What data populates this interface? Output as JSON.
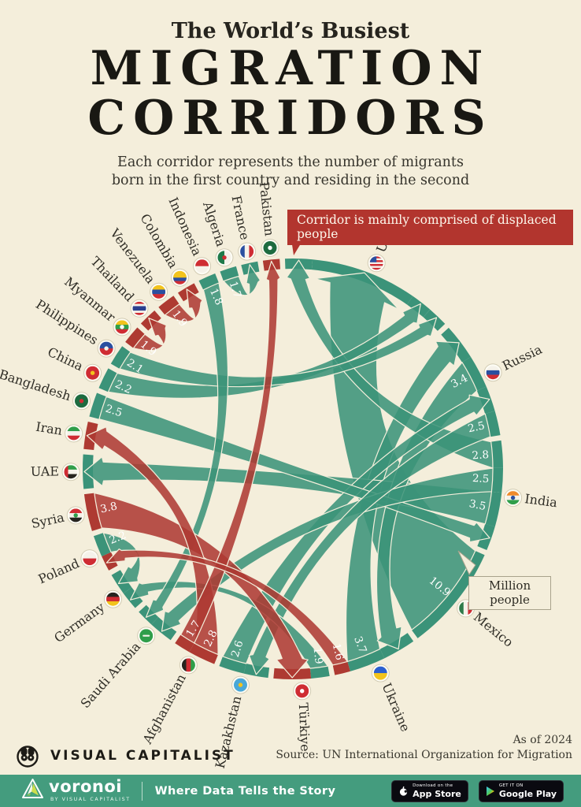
{
  "header": {
    "kicker": "The World’s Busiest",
    "title_line1": "MIGRATION",
    "title_line2": "CORRIDORS",
    "subtitle_line1": "Each corridor represents the number of migrants",
    "subtitle_line2": "born in the first country and residing in the second"
  },
  "annotations": {
    "displaced_note": "Corridor is mainly comprised of displaced people",
    "units_note": "Million people"
  },
  "chart_data": {
    "type": "chord",
    "title": "The World’s Busiest Migration Corridors",
    "unit": "million people",
    "legend": "Red corridor = mainly displaced people; teal corridor = other migration",
    "colors": {
      "corridor": "#3b9379",
      "displaced": "#ae3a32",
      "background": "#f4eedb",
      "value_label": "#ffffff"
    },
    "countries_clockwise_from_top": [
      "Pakistan",
      "U.S.",
      "Russia",
      "India",
      "Mexico",
      "Ukraine",
      "Türkiye",
      "Kazakhstan",
      "Afghanistan",
      "Saudi Arabia",
      "Germany",
      "Poland",
      "Syria",
      "UAE",
      "Iran",
      "Bangladesh",
      "China",
      "Philippines",
      "Myanmar",
      "Thailand",
      "Venezuela",
      "Colombia",
      "Indonesia",
      "Algeria",
      "France"
    ],
    "corridors": [
      {
        "from": "Mexico",
        "to": "U.S.",
        "value": 10.9,
        "displaced": false
      },
      {
        "from": "Syria",
        "to": "Türkiye",
        "value": 3.8,
        "displaced": true
      },
      {
        "from": "Ukraine",
        "to": "Russia",
        "value": 3.7,
        "displaced": false
      },
      {
        "from": "India",
        "to": "UAE",
        "value": 3.5,
        "displaced": false
      },
      {
        "from": "Russia",
        "to": "Ukraine",
        "value": 3.4,
        "displaced": false
      },
      {
        "from": "India",
        "to": "U.S.",
        "value": 2.8,
        "displaced": false
      },
      {
        "from": "Afghanistan",
        "to": "Iran",
        "value": 2.8,
        "displaced": true
      },
      {
        "from": "Kazakhstan",
        "to": "Russia",
        "value": 2.6,
        "displaced": false
      },
      {
        "from": "Bangladesh",
        "to": "India",
        "value": 2.5,
        "displaced": false
      },
      {
        "from": "India",
        "to": "Saudi Arabia",
        "value": 2.5,
        "displaced": false
      },
      {
        "from": "Russia",
        "to": "Kazakhstan",
        "value": 2.5,
        "displaced": false
      },
      {
        "from": "China",
        "to": "U.S.",
        "value": 2.2,
        "displaced": false
      },
      {
        "from": "Poland",
        "to": "Germany",
        "value": 2.2,
        "displaced": false
      },
      {
        "from": "Philippines",
        "to": "U.S.",
        "value": 2.1,
        "displaced": false
      },
      {
        "from": "Myanmar",
        "to": "Thailand",
        "value": 1.9,
        "displaced": true
      },
      {
        "from": "Venezuela",
        "to": "Colombia",
        "value": 1.9,
        "displaced": true
      },
      {
        "from": "Türkiye",
        "to": "Germany",
        "value": 1.9,
        "displaced": false
      },
      {
        "from": "Indonesia",
        "to": "Saudi Arabia",
        "value": 1.8,
        "displaced": false
      },
      {
        "from": "Algeria",
        "to": "France",
        "value": 1.7,
        "displaced": false
      },
      {
        "from": "Afghanistan",
        "to": "Pakistan",
        "value": 1.7,
        "displaced": true
      },
      {
        "from": "Ukraine",
        "to": "Poland",
        "value": 1.6,
        "displaced": true
      }
    ]
  },
  "footer": {
    "as_of": "As of 2024",
    "source": "Source: UN International Organization for Migration",
    "brand": "VISUAL CAPITALIST",
    "voronoi_name": "voronoi",
    "voronoi_sub": "BY VISUAL CAPITALIST",
    "tagline": "Where Data Tells the Story",
    "appstore_line1": "Download on the",
    "appstore_line2": "App Store",
    "googleplay_line1": "GET IT ON",
    "googleplay_line2": "Google Play"
  }
}
